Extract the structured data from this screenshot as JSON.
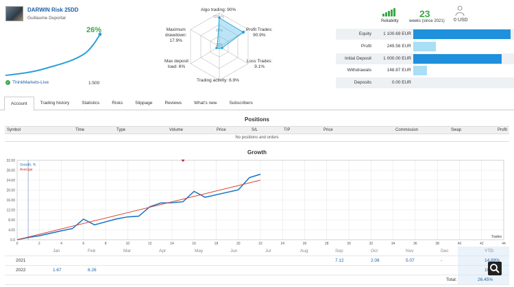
{
  "header": {
    "title": "DARWIN Risk 25DD",
    "author": "Guillaume Duportal",
    "return_pct": "26%",
    "broker": "ThinkMarkets-Live",
    "leverage": "1:500"
  },
  "radar": {
    "algo_trading": "Algo trading: 90%",
    "profit_trades_1": "Profit Trades:",
    "profit_trades_2": "90.9%",
    "loss_trades_1": "Loss Trades:",
    "loss_trades_2": "9.1%",
    "trading_activity": "Trading activity: 6.9%",
    "max_deposit_1": "Max deposit",
    "max_deposit_2": "load: 6%",
    "max_drawdown_1": "Maximum",
    "max_drawdown_2": "drawdown:",
    "max_drawdown_3": "17.9%",
    "ring_100": "100+%",
    "ring_60": "60%",
    "ring_20": "20%"
  },
  "summary": {
    "reliability_label": "Reliability",
    "weeks_value": "23",
    "weeks_label": "weeks (since 2021)",
    "subscribers_value": "0 USD"
  },
  "stats": [
    {
      "label": "Equity",
      "value": "1 100.69 EUR",
      "fraction": 1.0,
      "color": "#1e90dc"
    },
    {
      "label": "Profit",
      "value": "249.56 EUR",
      "fraction": 0.23,
      "color": "#a8dff5"
    },
    {
      "label": "Initial Deposit",
      "value": "1 000.00 EUR",
      "fraction": 0.91,
      "color": "#1e90dc"
    },
    {
      "label": "Withdrawals",
      "value": "148.87 EUR",
      "fraction": 0.14,
      "color": "#a8dff5"
    },
    {
      "label": "Deposits",
      "value": "0.00 EUR",
      "fraction": 0,
      "color": "#a8dff5"
    }
  ],
  "tabs": [
    "Account",
    "Trading history",
    "Statistics",
    "Risks",
    "Slippage",
    "Reviews",
    "What's new",
    "Subscribers"
  ],
  "positions": {
    "title": "Positions",
    "columns": [
      "Symbol",
      "Time",
      "Type",
      "Volume",
      "Price",
      "S/L",
      "T/P",
      "Price",
      "Commission",
      "Swap",
      "Profit"
    ],
    "empty": "No positions and orders"
  },
  "growth": {
    "title": "Growth",
    "legend_growth": "Growth, %",
    "legend_average": "Average",
    "trades_label": "Trades",
    "months": [
      "Jan",
      "Feb",
      "Mar",
      "Apr",
      "May",
      "Jun",
      "Jul",
      "Aug",
      "Sep",
      "Oct",
      "Nov",
      "Dec",
      "YTD"
    ],
    "rows": [
      {
        "year": "2021",
        "values": [
          "",
          "",
          "",
          "",
          "",
          "",
          "",
          "",
          "7.12",
          "2.08",
          "5.07",
          "-",
          "14.89%"
        ]
      },
      {
        "year": "2022",
        "values": [
          "1.67",
          "8.26",
          "",
          "",
          "",
          "",
          "",
          "",
          "",
          "",
          "",
          "",
          "10.04%"
        ]
      }
    ],
    "total_label": "Total:",
    "total_value": "26.45%"
  },
  "chart_data": {
    "type": "line",
    "xlabel": "Trades",
    "ylabel": "",
    "xlim": [
      0,
      44
    ],
    "ylim": [
      0,
      32
    ],
    "x_ticks": [
      0,
      2,
      4,
      6,
      8,
      10,
      12,
      14,
      16,
      18,
      20,
      22,
      24,
      26,
      28,
      30,
      32,
      34,
      36,
      38,
      40,
      42,
      44
    ],
    "y_ticks": [
      "0.0",
      "4.00",
      "8.00",
      "12.00",
      "16.00",
      "20.00",
      "24.00",
      "28.00",
      "32.00"
    ],
    "series": [
      {
        "name": "Growth, %",
        "color": "#1e78c8",
        "x": [
          0,
          1,
          2,
          3,
          4,
          5,
          6,
          7,
          8,
          9,
          10,
          11,
          12,
          13,
          14,
          15,
          16,
          17,
          18,
          19,
          20,
          21,
          22
        ],
        "y": [
          0,
          0.9,
          1.6,
          2.6,
          3.6,
          4.5,
          8.3,
          6.0,
          7.2,
          8.4,
          9.2,
          9.5,
          13.3,
          14.8,
          14.9,
          15.3,
          19.5,
          17.1,
          18.1,
          19.1,
          20.1,
          25.0,
          26.4
        ]
      },
      {
        "name": "Average",
        "color": "#d9432f",
        "x": [
          0,
          22
        ],
        "y": [
          0,
          24.0
        ]
      }
    ],
    "grid": true
  }
}
